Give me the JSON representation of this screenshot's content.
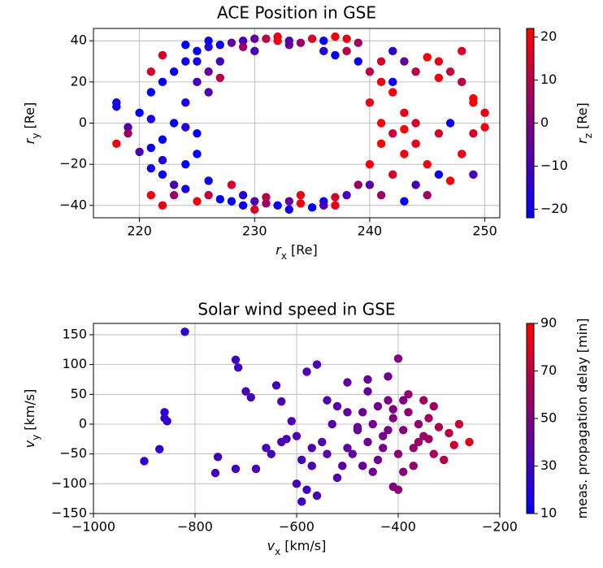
{
  "chart_data": [
    {
      "type": "scatter",
      "title": "ACE Position in GSE",
      "xlabel": {
        "symbol": "r",
        "sub": "x",
        "unit": "[Re]"
      },
      "ylabel": {
        "symbol": "r",
        "sub": "y",
        "unit": "[Re]"
      },
      "clabel": {
        "symbol": "r",
        "sub": "z",
        "unit": "[Re]"
      },
      "xlim": [
        216,
        251.3
      ],
      "ylim": [
        -46,
        46
      ],
      "clim": [
        -22,
        22
      ],
      "xticks": [
        220,
        230,
        240,
        250
      ],
      "yticks": [
        {
          "value": -40,
          "label": "−40"
        },
        {
          "value": -20,
          "label": "−20"
        },
        0,
        20,
        40
      ],
      "cticks": [
        {
          "value": -20,
          "label": "−20"
        },
        {
          "value": -10,
          "label": "−10"
        },
        0,
        10,
        20
      ],
      "colormap": [
        "#0000ff",
        "#ff0000"
      ],
      "grid": true,
      "x": [
        218,
        218,
        219,
        218,
        219,
        220,
        220,
        221,
        221,
        221,
        221,
        222,
        222,
        222,
        222,
        221,
        222,
        223,
        223,
        223,
        223,
        224,
        224,
        224,
        224,
        224,
        225,
        225,
        225,
        225,
        226,
        226,
        226,
        226,
        226,
        227,
        227,
        227,
        228,
        228,
        228,
        222,
        221,
        225,
        224,
        226,
        225,
        229,
        230,
        231,
        232,
        233,
        234,
        235,
        236,
        237,
        238,
        239,
        230,
        233,
        236,
        237,
        239,
        238,
        229,
        232,
        227,
        229,
        230,
        231,
        232,
        233,
        234,
        235,
        236,
        237,
        238,
        230,
        234,
        236,
        229,
        231,
        233,
        239,
        237,
        240,
        240,
        240,
        241,
        241,
        241,
        241,
        242,
        242,
        242,
        242,
        243,
        243,
        243,
        243,
        244,
        244,
        244,
        245,
        245,
        246,
        246,
        246,
        247,
        247,
        247,
        248,
        248,
        248,
        249,
        249,
        249,
        250,
        250,
        249,
        245,
        244,
        243,
        242,
        240,
        241,
        246
      ],
      "y": [
        8,
        10,
        -2,
        -10,
        -5,
        5,
        -14,
        2,
        -12,
        15,
        -22,
        20,
        -8,
        -18,
        -25,
        25,
        33,
        25,
        0,
        -30,
        -35,
        30,
        10,
        -2,
        -20,
        -32,
        35,
        20,
        -5,
        -38,
        37,
        25,
        15,
        -28,
        -35,
        22,
        38,
        -37,
        39,
        -30,
        -38,
        -40,
        -35,
        -15,
        38,
        40,
        30,
        40,
        41,
        41,
        40,
        40,
        39,
        41,
        40,
        42,
        41,
        39,
        35,
        38,
        35,
        33,
        30,
        35,
        37,
        42,
        30,
        -40,
        -38,
        -39,
        -40,
        -38,
        -39,
        -41,
        -38,
        -36,
        -35,
        -42,
        -35,
        -40,
        -35,
        -36,
        -42,
        -30,
        -40,
        25,
        10,
        -20,
        0,
        30,
        -10,
        -35,
        20,
        -5,
        -25,
        15,
        30,
        5,
        -15,
        -38,
        25,
        -30,
        0,
        32,
        -35,
        30,
        -25,
        -5,
        25,
        -28,
        0,
        20,
        35,
        -15,
        10,
        -5,
        -25,
        5,
        -2,
        12,
        -20,
        -10,
        -3,
        35,
        -30,
        20,
        22
      ],
      "c": [
        -20,
        -18,
        -8,
        20,
        5,
        -22,
        -10,
        -18,
        -20,
        -22,
        -18,
        -20,
        -22,
        -15,
        -20,
        15,
        15,
        -22,
        -22,
        -10,
        5,
        -20,
        -18,
        -15,
        -22,
        -18,
        -20,
        -10,
        -22,
        20,
        -15,
        -5,
        -8,
        -20,
        10,
        10,
        -20,
        -22,
        -5,
        15,
        -20,
        18,
        20,
        -22,
        -22,
        -20,
        -18,
        -10,
        -5,
        10,
        20,
        -10,
        5,
        15,
        -20,
        20,
        18,
        5,
        -10,
        -5,
        -15,
        -22,
        -20,
        10,
        5,
        18,
        -10,
        -20,
        -10,
        5,
        -20,
        -5,
        20,
        -22,
        -20,
        15,
        -10,
        15,
        18,
        -10,
        -15,
        10,
        -20,
        5,
        18,
        10,
        18,
        20,
        20,
        15,
        22,
        5,
        -20,
        12,
        15,
        20,
        -5,
        18,
        20,
        -22,
        10,
        -10,
        15,
        20,
        5,
        18,
        -20,
        15,
        12,
        20,
        -20,
        10,
        15,
        18,
        20,
        15,
        -10,
        18,
        20,
        22,
        20,
        18,
        22,
        -15,
        -8,
        18,
        20
      ]
    },
    {
      "type": "scatter",
      "title": "Solar wind speed in GSE",
      "xlabel": {
        "symbol": "v",
        "sub": "x",
        "unit": "[km/s]"
      },
      "ylabel": {
        "symbol": "v",
        "sub": "y",
        "unit": "[km/s]"
      },
      "clabel": {
        "symbol": "meas. propagation delay",
        "sub": "",
        "unit": "[min]"
      },
      "xlim": [
        -1000,
        -200
      ],
      "ylim": [
        -150,
        169
      ],
      "clim": [
        10,
        90
      ],
      "xticks": [
        {
          "value": -1000,
          "label": "−1000"
        },
        {
          "value": -800,
          "label": "−800"
        },
        {
          "value": -600,
          "label": "−600"
        },
        {
          "value": -400,
          "label": "−400"
        },
        {
          "value": -200,
          "label": "−200"
        }
      ],
      "yticks": [
        {
          "value": -150,
          "label": "−150"
        },
        {
          "value": -100,
          "label": "−100"
        },
        {
          "value": -50,
          "label": "−50"
        },
        0,
        50,
        100,
        150
      ],
      "cticks": [
        10,
        30,
        50,
        70,
        90
      ],
      "colormap": [
        "#0000ff",
        "#ff0000"
      ],
      "grid": true,
      "x": [
        -900,
        -870,
        -860,
        -855,
        -820,
        -860,
        -760,
        -755,
        -720,
        -715,
        -700,
        -690,
        -680,
        -720,
        -650,
        -640,
        -630,
        -620,
        -600,
        -590,
        -580,
        -560,
        -580,
        -560,
        -550,
        -540,
        -520,
        -500,
        -480,
        -460,
        -440,
        -420,
        -410,
        -400,
        -390,
        -380,
        -370,
        -360,
        -350,
        -340,
        -330,
        -320,
        -300,
        -290,
        -260,
        -280,
        -310,
        -450,
        -470,
        -490,
        -510,
        -530,
        -570,
        -600,
        -610,
        -590,
        -430,
        -410,
        -420,
        -440,
        -460,
        -480,
        -500,
        -400,
        -390,
        -380,
        -370,
        -350,
        -330,
        -450,
        -430,
        -470,
        -540,
        -520,
        -400,
        -460,
        -500,
        -360,
        -340,
        -420,
        -410,
        -390,
        -570,
        -630,
        -660
      ],
      "y": [
        -62,
        -42,
        20,
        5,
        155,
        10,
        -82,
        -55,
        108,
        95,
        55,
        45,
        -75,
        -75,
        -50,
        65,
        38,
        -25,
        -100,
        -130,
        -110,
        -120,
        88,
        100,
        -30,
        40,
        30,
        70,
        -10,
        55,
        -60,
        80,
        -105,
        -110,
        40,
        20,
        -40,
        0,
        -20,
        10,
        30,
        -5,
        -15,
        -35,
        -30,
        0,
        -60,
        -80,
        20,
        -50,
        -70,
        0,
        -40,
        -20,
        5,
        -60,
        -20,
        10,
        40,
        30,
        -30,
        -5,
        20,
        -50,
        -80,
        50,
        -70,
        40,
        -50,
        0,
        -40,
        -70,
        -50,
        -90,
        110,
        75,
        -40,
        -30,
        -25,
        -10,
        25,
        -10,
        -70,
        -30,
        -40
      ],
      "c": [
        25,
        25,
        25,
        25,
        25,
        25,
        30,
        30,
        30,
        30,
        32,
        32,
        32,
        30,
        32,
        32,
        34,
        34,
        32,
        30,
        30,
        32,
        35,
        35,
        35,
        35,
        38,
        40,
        40,
        42,
        45,
        45,
        50,
        55,
        50,
        55,
        55,
        55,
        58,
        60,
        60,
        65,
        70,
        75,
        80,
        72,
        65,
        45,
        42,
        40,
        38,
        38,
        35,
        34,
        34,
        33,
        48,
        50,
        48,
        46,
        44,
        42,
        40,
        52,
        52,
        55,
        57,
        60,
        62,
        46,
        48,
        43,
        37,
        37,
        50,
        42,
        40,
        58,
        60,
        48,
        50,
        52,
        34,
        33,
        32
      ]
    }
  ]
}
